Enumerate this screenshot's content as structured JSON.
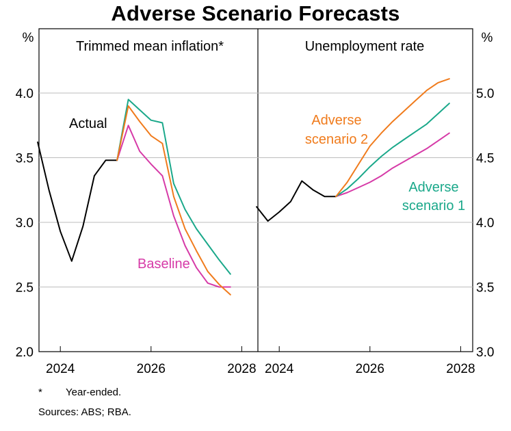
{
  "title": "Adverse Scenario Forecasts",
  "footnotes": {
    "mark": "*",
    "note": "Year-ended.",
    "sources": "Sources: ABS; RBA."
  },
  "colors": {
    "actual": "#000000",
    "baseline": "#d63aa7",
    "adverse1": "#1aa88a",
    "adverse2": "#f07b1c",
    "grid": "#bdbdbd"
  },
  "chart_data": [
    {
      "type": "line",
      "title": "Trimmed mean inflation*",
      "ylabel": "%",
      "ylim": [
        2.0,
        4.0
      ],
      "yticks": [
        "2.0",
        "2.5",
        "3.0",
        "3.5",
        "4.0"
      ],
      "xticks": [
        "2024",
        "2026",
        "2028"
      ],
      "grid": true,
      "series": [
        {
          "name": "Actual",
          "color": "#000000",
          "x": [
            "2023-Q3",
            "2023-Q4",
            "2024-Q1",
            "2024-Q2",
            "2024-Q3",
            "2024-Q4",
            "2025-Q1",
            "2025-Q2"
          ],
          "values": [
            3.62,
            3.25,
            2.93,
            2.7,
            2.97,
            3.36,
            3.48,
            3.48
          ]
        },
        {
          "name": "Baseline",
          "color": "#d63aa7",
          "x": [
            "2025-Q2",
            "2025-Q3",
            "2025-Q4",
            "2026-Q1",
            "2026-Q2",
            "2026-Q3",
            "2026-Q4",
            "2027-Q1",
            "2027-Q2",
            "2027-Q3",
            "2027-Q4"
          ],
          "values": [
            3.48,
            3.75,
            3.55,
            3.45,
            3.36,
            3.05,
            2.82,
            2.65,
            2.53,
            2.5,
            2.5
          ]
        },
        {
          "name": "Adverse scenario 1",
          "color": "#1aa88a",
          "x": [
            "2025-Q2",
            "2025-Q3",
            "2025-Q4",
            "2026-Q1",
            "2026-Q2",
            "2026-Q3",
            "2026-Q4",
            "2027-Q1",
            "2027-Q2",
            "2027-Q3",
            "2027-Q4"
          ],
          "values": [
            3.48,
            3.95,
            3.87,
            3.79,
            3.77,
            3.3,
            3.1,
            2.95,
            2.83,
            2.71,
            2.6
          ]
        },
        {
          "name": "Adverse scenario 2",
          "color": "#f07b1c",
          "x": [
            "2025-Q2",
            "2025-Q3",
            "2025-Q4",
            "2026-Q1",
            "2026-Q2",
            "2026-Q3",
            "2026-Q4",
            "2027-Q1",
            "2027-Q2",
            "2027-Q3",
            "2027-Q4"
          ],
          "values": [
            3.48,
            3.9,
            3.78,
            3.67,
            3.61,
            3.2,
            2.95,
            2.78,
            2.62,
            2.52,
            2.44
          ]
        }
      ],
      "labels": {
        "actual": "Actual",
        "baseline": "Baseline"
      }
    },
    {
      "type": "line",
      "title": "Unemployment rate",
      "ylabel": "%",
      "ylim": [
        3.0,
        5.0
      ],
      "yticks": [
        "3.0",
        "3.5",
        "4.0",
        "4.5",
        "5.0"
      ],
      "xticks": [
        "2024",
        "2026",
        "2028"
      ],
      "grid": true,
      "series": [
        {
          "name": "Actual",
          "color": "#000000",
          "x": [
            "2023-Q3",
            "2023-Q4",
            "2024-Q1",
            "2024-Q2",
            "2024-Q3",
            "2024-Q4",
            "2025-Q1",
            "2025-Q2"
          ],
          "values": [
            4.12,
            4.01,
            4.08,
            4.16,
            4.32,
            4.25,
            4.2,
            4.2
          ]
        },
        {
          "name": "Baseline",
          "color": "#d63aa7",
          "x": [
            "2025-Q2",
            "2025-Q3",
            "2025-Q4",
            "2026-Q1",
            "2026-Q2",
            "2026-Q3",
            "2026-Q4",
            "2027-Q1",
            "2027-Q2",
            "2027-Q3",
            "2027-Q4"
          ],
          "values": [
            4.2,
            4.23,
            4.27,
            4.31,
            4.36,
            4.42,
            4.47,
            4.52,
            4.57,
            4.63,
            4.69
          ]
        },
        {
          "name": "Adverse scenario 1",
          "color": "#1aa88a",
          "x": [
            "2025-Q2",
            "2025-Q3",
            "2025-Q4",
            "2026-Q1",
            "2026-Q2",
            "2026-Q3",
            "2026-Q4",
            "2027-Q1",
            "2027-Q2",
            "2027-Q3",
            "2027-Q4"
          ],
          "values": [
            4.2,
            4.26,
            4.34,
            4.43,
            4.51,
            4.58,
            4.64,
            4.7,
            4.76,
            4.84,
            4.92
          ]
        },
        {
          "name": "Adverse scenario 2",
          "color": "#f07b1c",
          "x": [
            "2025-Q2",
            "2025-Q3",
            "2025-Q4",
            "2026-Q1",
            "2026-Q2",
            "2026-Q3",
            "2026-Q4",
            "2027-Q1",
            "2027-Q2",
            "2027-Q3",
            "2027-Q4"
          ],
          "values": [
            4.2,
            4.31,
            4.45,
            4.59,
            4.69,
            4.78,
            4.86,
            4.94,
            5.02,
            5.08,
            5.11
          ]
        }
      ],
      "labels": {
        "adverse2": [
          "Adverse",
          "scenario 2"
        ],
        "adverse1": [
          "Adverse",
          "scenario 1"
        ]
      }
    }
  ]
}
